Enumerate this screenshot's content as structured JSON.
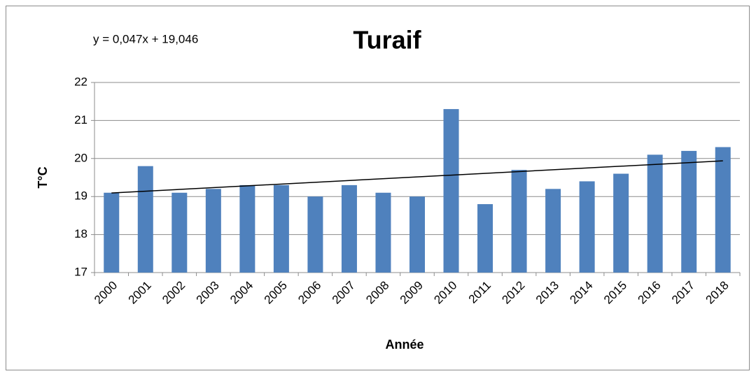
{
  "chart_data": {
    "type": "bar",
    "title": "Turaif",
    "x_label": "Année",
    "y_label": "T°C",
    "categories": [
      "2000",
      "2001",
      "2002",
      "2003",
      "2004",
      "2005",
      "2006",
      "2007",
      "2008",
      "2009",
      "2010",
      "2011",
      "2012",
      "2013",
      "2014",
      "2015",
      "2016",
      "2017",
      "2018"
    ],
    "values": [
      19.1,
      19.8,
      19.1,
      19.2,
      19.3,
      19.3,
      19.0,
      19.3,
      19.1,
      19.0,
      21.3,
      18.8,
      19.7,
      19.2,
      19.4,
      19.6,
      20.1,
      20.2,
      20.3
    ],
    "color": "#4f81bd",
    "ylim": [
      17,
      22
    ],
    "yticks": [
      17,
      18,
      19,
      20,
      21,
      22
    ],
    "grid": true,
    "trendline": {
      "label": "y = 0,047x + 19,046",
      "slope": 0.047,
      "intercept": 19.046,
      "color": "#000000"
    }
  }
}
